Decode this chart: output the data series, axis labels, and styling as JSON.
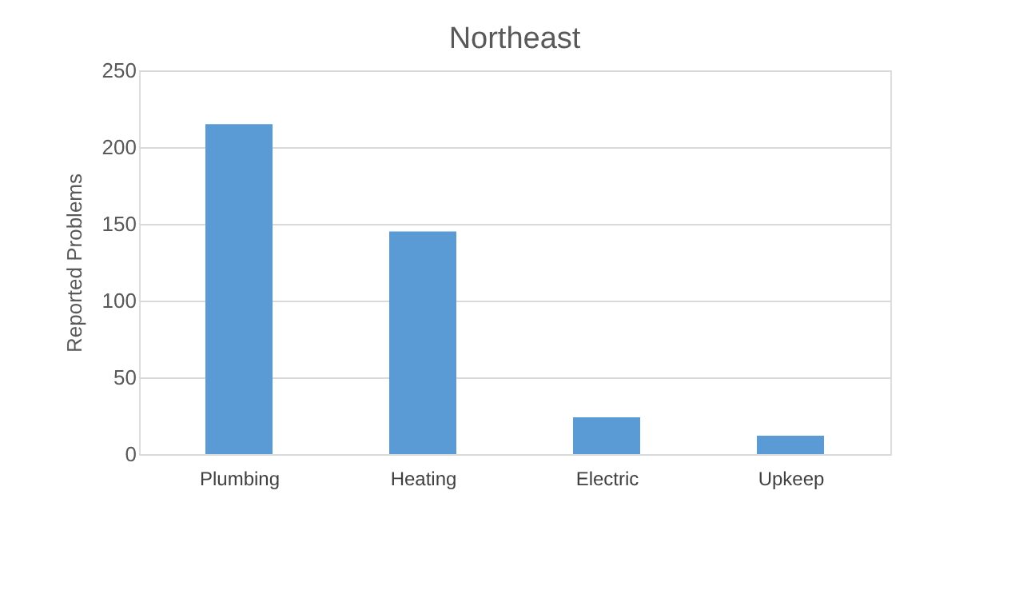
{
  "chart_data": {
    "type": "bar",
    "title": "Northeast",
    "ylabel": "Reported Problems",
    "categories": [
      "Plumbing",
      "Heating",
      "Electric",
      "Upkeep"
    ],
    "values": [
      215,
      145,
      24,
      12
    ],
    "color": "#5b9bd5",
    "ylim": [
      0,
      250
    ],
    "yticks": [
      0,
      50,
      100,
      150,
      200,
      250
    ],
    "grid": "y"
  }
}
